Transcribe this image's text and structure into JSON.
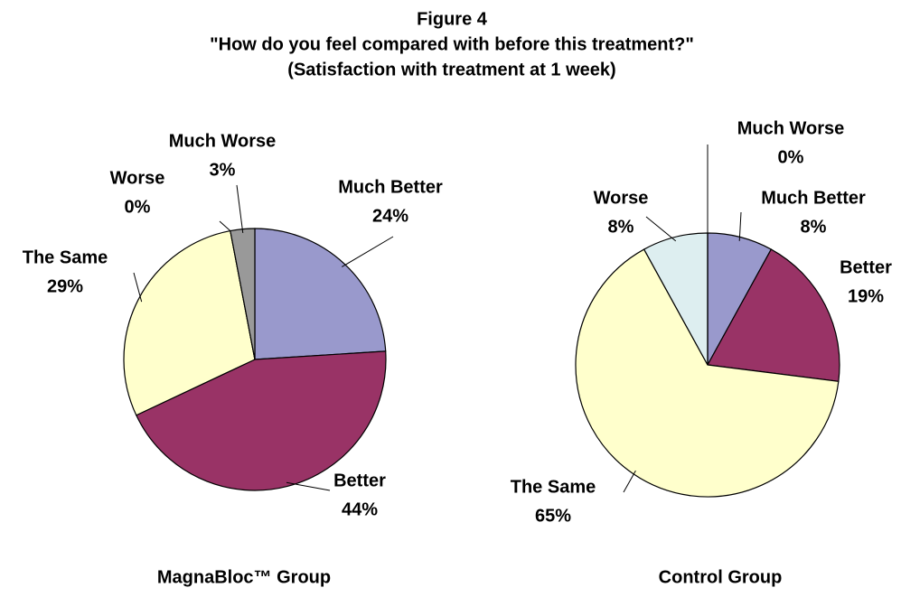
{
  "header": {
    "title": "Figure 4",
    "question": "\"How do you feel compared with before this treatment?\"",
    "subtitle": "(Satisfaction with treatment at 1 week)"
  },
  "chart_data": [
    {
      "type": "pie",
      "title": "MagnaBloc™ Group",
      "categories": [
        "Much Better",
        "Better",
        "The Same",
        "Worse",
        "Much Worse"
      ],
      "values": [
        24,
        44,
        29,
        0,
        3
      ],
      "value_labels": [
        "24%",
        "44%",
        "29%",
        "0%",
        "3%"
      ],
      "colors": [
        "#9999cc",
        "#993366",
        "#ffffcc",
        "#ddeef0",
        "#999999"
      ]
    },
    {
      "type": "pie",
      "title": "Control Group",
      "categories": [
        "Much Better",
        "Better",
        "The Same",
        "Worse",
        "Much Worse"
      ],
      "values": [
        8,
        19,
        65,
        8,
        0
      ],
      "value_labels": [
        "8%",
        "19%",
        "65%",
        "8%",
        "0%"
      ],
      "colors": [
        "#9999cc",
        "#993366",
        "#ffffcc",
        "#ddeef0",
        "#999999"
      ]
    }
  ]
}
